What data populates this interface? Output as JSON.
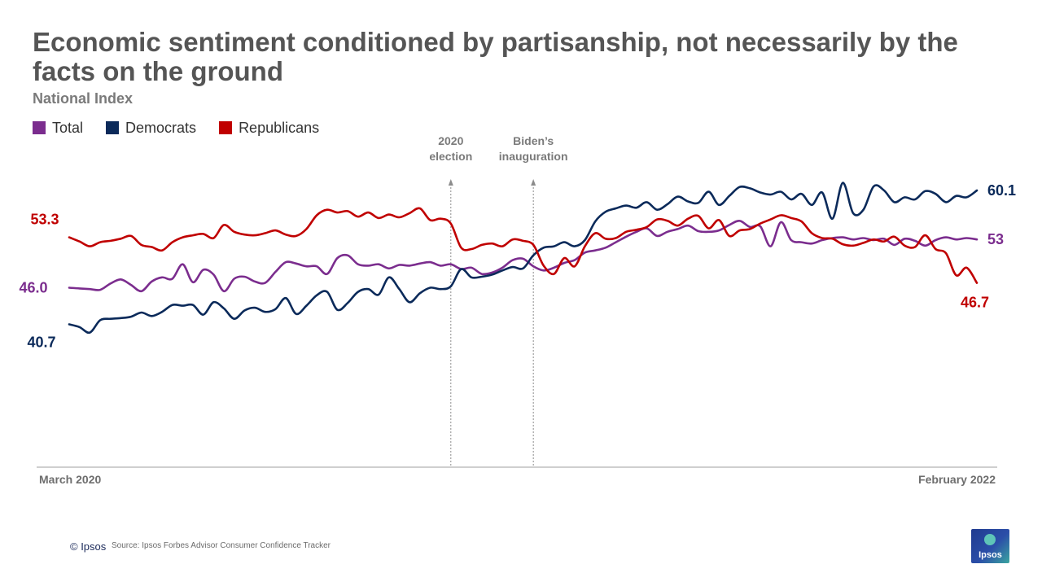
{
  "title": "Economic sentiment conditioned by partisanship, not necessarily by the facts on the ground",
  "subtitle": "National Index",
  "footer": {
    "copyright": "© Ipsos",
    "source": "Source: Ipsos Forbes Advisor Consumer Confidence Tracker",
    "logo_text": "Ipsos"
  },
  "chart_data": {
    "type": "line",
    "x_axis": {
      "start_label": "March 2020",
      "end_label": "February 2022"
    },
    "ylim": [
      20,
      70
    ],
    "grid": false,
    "legend_placement": "top-left",
    "annotations": [
      {
        "index": 37,
        "label_lines": [
          "2020",
          "election"
        ]
      },
      {
        "index": 45,
        "label_lines": [
          "Biden’s",
          "inauguration"
        ]
      }
    ],
    "series": [
      {
        "name": "Total",
        "color": "#7b2d8e",
        "start_label": "46.0",
        "end_label": "53",
        "values": [
          46.0,
          45.9,
          45.8,
          45.7,
          46.6,
          47.2,
          46.4,
          45.5,
          46.9,
          47.5,
          47.3,
          49.4,
          46.8,
          48.6,
          47.9,
          45.5,
          47.3,
          47.6,
          46.9,
          46.7,
          48.3,
          49.7,
          49.5,
          49.1,
          49.1,
          48.0,
          50.3,
          50.7,
          49.4,
          49.2,
          49.4,
          48.8,
          49.3,
          49.2,
          49.5,
          49.7,
          49.2,
          49.4,
          48.7,
          48.9,
          48.0,
          48.2,
          48.9,
          50.0,
          50.2,
          49.1,
          48.5,
          48.9,
          49.6,
          50.0,
          51.1,
          51.4,
          51.8,
          52.6,
          53.4,
          54.1,
          54.6,
          53.5,
          54.1,
          54.5,
          55.0,
          54.2,
          54.1,
          54.3,
          55.1,
          55.7,
          54.8,
          54.9,
          52.0,
          55.5,
          52.9,
          52.6,
          52.4,
          52.9,
          53.2,
          53.3,
          53.0,
          53.2,
          52.9,
          53.1,
          52.2,
          53.1,
          52.8,
          52.1,
          52.9,
          53.3,
          53.0,
          53.2,
          53.0
        ]
      },
      {
        "name": "Democrats",
        "color": "#0b2a5a",
        "start_label": "40.7",
        "end_label": "60.1",
        "values": [
          40.7,
          40.3,
          39.5,
          41.3,
          41.5,
          41.6,
          41.8,
          42.4,
          41.9,
          42.5,
          43.5,
          43.4,
          43.5,
          42.1,
          43.9,
          43.0,
          41.5,
          42.7,
          43.1,
          42.5,
          42.9,
          44.5,
          42.2,
          43.4,
          44.9,
          45.4,
          42.8,
          43.8,
          45.4,
          45.8,
          45.0,
          47.5,
          45.8,
          43.9,
          45.2,
          46.0,
          45.8,
          46.2,
          48.7,
          47.5,
          47.6,
          47.9,
          48.5,
          49.0,
          48.8,
          50.7,
          51.8,
          52.0,
          52.6,
          52.0,
          52.9,
          55.6,
          57.0,
          57.5,
          57.9,
          57.6,
          58.4,
          57.3,
          58.1,
          59.2,
          58.5,
          58.3,
          59.9,
          58.0,
          59.3,
          60.6,
          60.4,
          59.8,
          59.5,
          59.9,
          58.8,
          59.6,
          58.0,
          59.8,
          56.0,
          61.2,
          56.8,
          57.3,
          60.7,
          60.1,
          58.4,
          59.1,
          58.8,
          60.0,
          59.6,
          58.4,
          59.3,
          59.1,
          60.1
        ]
      },
      {
        "name": "Republicans",
        "color": "#c00000",
        "start_label": "53.3",
        "end_label": "46.7",
        "values": [
          53.3,
          52.7,
          52.0,
          52.6,
          52.8,
          53.1,
          53.5,
          52.2,
          51.9,
          51.4,
          52.6,
          53.3,
          53.6,
          53.8,
          53.2,
          55.1,
          54.1,
          53.7,
          53.6,
          53.9,
          54.3,
          53.7,
          53.5,
          54.5,
          56.5,
          57.3,
          56.9,
          57.1,
          56.3,
          56.9,
          56.1,
          56.6,
          56.2,
          56.8,
          57.5,
          55.8,
          56.0,
          55.3,
          51.8,
          51.6,
          52.2,
          52.4,
          52.0,
          53.0,
          52.8,
          52.2,
          49.2,
          48.0,
          50.3,
          49.1,
          52.0,
          53.9,
          53.1,
          53.2,
          54.1,
          54.4,
          54.8,
          55.9,
          55.7,
          55.0,
          56.0,
          56.4,
          54.6,
          55.8,
          53.5,
          54.3,
          54.5,
          55.3,
          55.9,
          56.5,
          56.1,
          55.6,
          53.9,
          53.2,
          53.1,
          52.3,
          52.1,
          52.5,
          53.0,
          52.7,
          53.4,
          52.1,
          51.9,
          53.6,
          51.6,
          51.0,
          47.8,
          48.9,
          46.7
        ]
      }
    ]
  }
}
